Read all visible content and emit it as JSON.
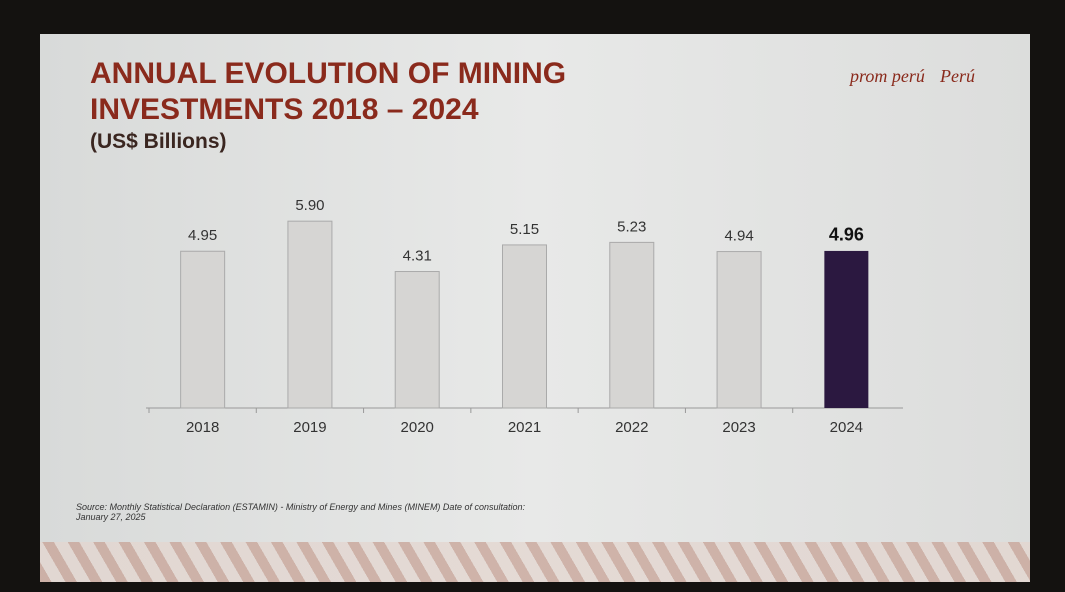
{
  "chart_data": {
    "type": "bar",
    "title": "ANNUAL EVOLUTION OF MINING INVESTMENTS 2018 – 2024",
    "subtitle": "(US$ Billions)",
    "categories": [
      "2018",
      "2019",
      "2020",
      "2021",
      "2022",
      "2023",
      "2024"
    ],
    "values": [
      4.95,
      5.9,
      4.31,
      5.15,
      5.23,
      4.94,
      4.96
    ],
    "value_labels": [
      "4.95",
      "5.90",
      "4.31",
      "5.15",
      "5.23",
      "4.94",
      "4.96"
    ],
    "colors": [
      "#d6d5d3",
      "#d6d5d3",
      "#d6d5d3",
      "#d6d5d3",
      "#d6d5d3",
      "#d6d5d3",
      "#2b1840"
    ],
    "highlight": 6,
    "ylim": [
      0,
      6
    ],
    "source": "Source: Monthly Statistical Declaration (ESTAMIN) - Ministry of Energy and Mines (MINEM) Date of consultation: January 27, 2025"
  },
  "logos": [
    "prom perú",
    "Perú"
  ]
}
